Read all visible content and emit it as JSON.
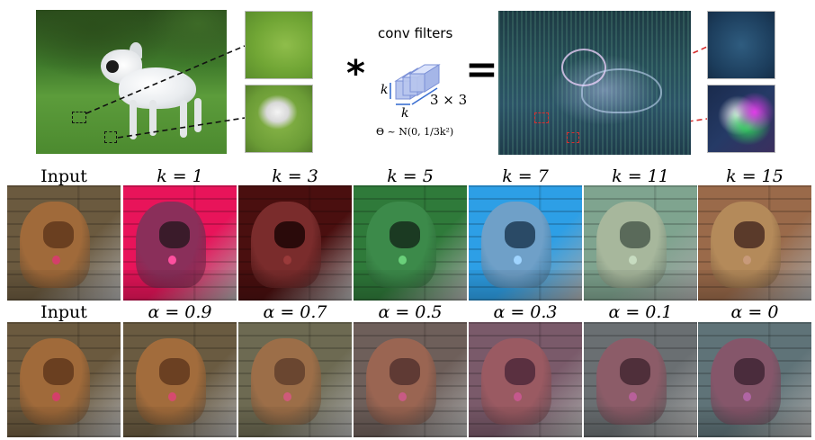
{
  "top": {
    "conv_title": "conv filters",
    "op_star": "*",
    "op_equals": "=",
    "k_label_side": "k",
    "k_label_bottom": "k",
    "size_label": "3 × 3",
    "distribution_label": "Θ ~ N(0, 1/3k²)"
  },
  "row1": {
    "labels": [
      "Input",
      "k = 1",
      "k = 3",
      "k = 5",
      "k = 7",
      "k = 11",
      "k = 15"
    ]
  },
  "row2": {
    "labels": [
      "Input",
      "α = 0.9",
      "α = 0.7",
      "α = 0.5",
      "α = 0.3",
      "α = 0.1",
      "α = 0"
    ]
  },
  "colors": {
    "filter_box_line": "#111111",
    "filter_box_red": "#d62f2f",
    "cube": "#b8c6ee",
    "cube_edge": "#7a8fd6",
    "arrow": "#3b6fd1"
  },
  "images": {
    "row1_tints": [
      {
        "name": "input",
        "bg": "#6b5a3f",
        "dog": "#a06a3a",
        "snout": "#6a3f20",
        "tag": "#d43f6a"
      },
      {
        "name": "k1",
        "bg": "#e8145a",
        "dog": "#8a2f5a",
        "snout": "#3a1b2a",
        "tag": "#ff4f9f"
      },
      {
        "name": "k3",
        "bg": "#4a0f0f",
        "dog": "#7a2c2c",
        "snout": "#2a0a0a",
        "tag": "#9a3a3a"
      },
      {
        "name": "k5",
        "bg": "#2f7a3a",
        "dog": "#3c8a4a",
        "snout": "#1b3a22",
        "tag": "#6ad07a"
      },
      {
        "name": "k7",
        "bg": "#2d9fe6",
        "dog": "#6fa0c8",
        "snout": "#2a4a66",
        "tag": "#9fd4ff"
      },
      {
        "name": "k11",
        "bg": "#7fa48f",
        "dog": "#a7b79c",
        "snout": "#5a6a5a",
        "tag": "#c7dcc0"
      },
      {
        "name": "k15",
        "bg": "#9a6a4a",
        "dog": "#b48a5a",
        "snout": "#5a3a2a",
        "tag": "#c89a7a"
      }
    ],
    "row2_tints": [
      {
        "name": "input",
        "bg": "#6b5a3f",
        "dog": "#a06a3a",
        "snout": "#6a3f20",
        "tag": "#d43f6a"
      },
      {
        "name": "a09",
        "bg": "#6a5b41",
        "dog": "#a26c3c",
        "snout": "#6b4022",
        "tag": "#d64a6f"
      },
      {
        "name": "a07",
        "bg": "#6d6a52",
        "dog": "#9c6e48",
        "snout": "#6a4630",
        "tag": "#cf5a7a"
      },
      {
        "name": "a05",
        "bg": "#6e5f5a",
        "dog": "#9a6552",
        "snout": "#5f3a34",
        "tag": "#c85a84"
      },
      {
        "name": "a03",
        "bg": "#7a5a6a",
        "dog": "#9a5a62",
        "snout": "#5a3040",
        "tag": "#c5588d"
      },
      {
        "name": "a01",
        "bg": "#6a6f72",
        "dog": "#8c5c68",
        "snout": "#4f2f3a",
        "tag": "#b8609a"
      },
      {
        "name": "a0",
        "bg": "#5f7378",
        "dog": "#85566a",
        "snout": "#4a2c3c",
        "tag": "#b065a4"
      }
    ]
  }
}
